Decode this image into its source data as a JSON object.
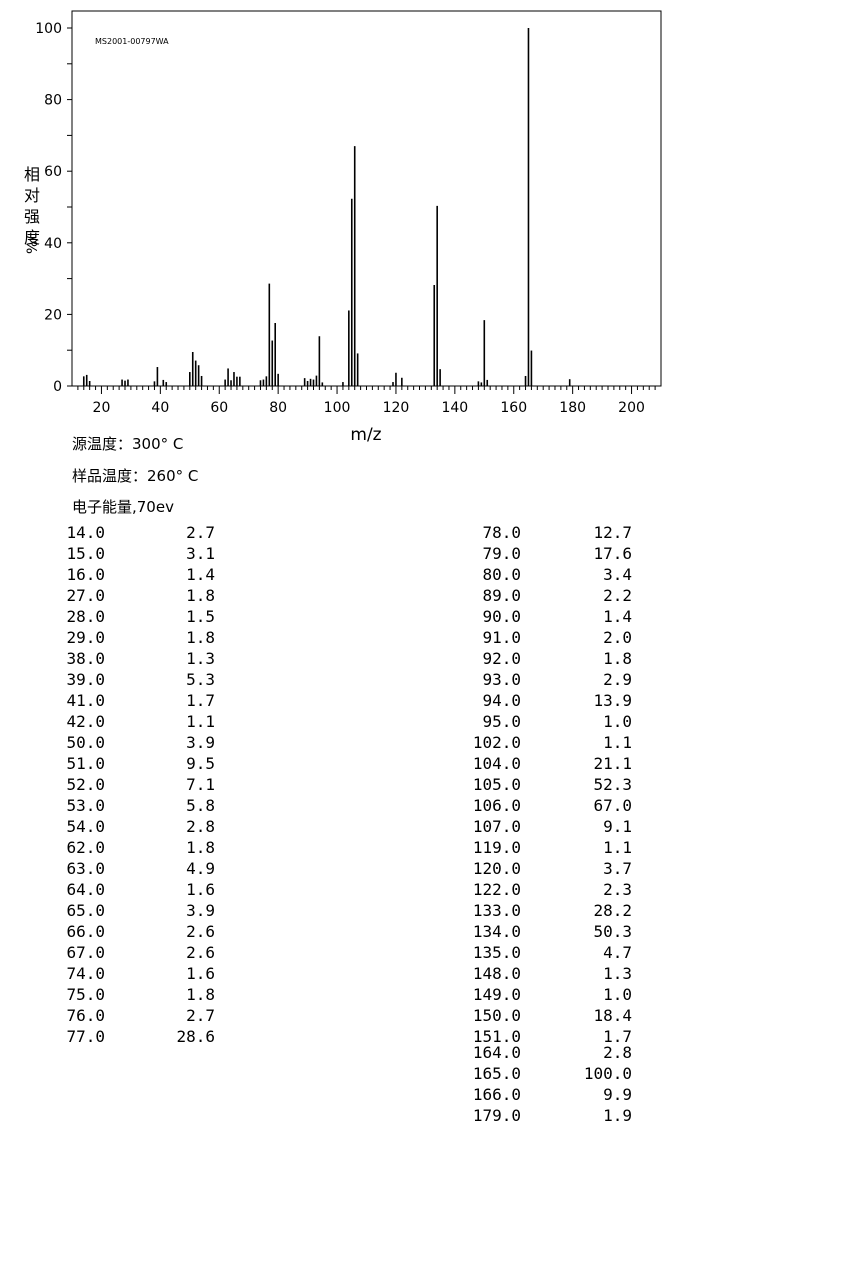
{
  "chart_data": {
    "type": "bar",
    "sample_id": "MS2001-00797WA",
    "xlabel": "m/z",
    "ylabel": "相对强度 %/",
    "xlim": [
      10,
      205
    ],
    "ylim": [
      0,
      105
    ],
    "x_ticks": [
      20,
      40,
      60,
      80,
      100,
      120,
      140,
      160,
      180,
      200
    ],
    "y_ticks": [
      0,
      20,
      40,
      60,
      80,
      100
    ],
    "peaks": [
      [
        14.0,
        2.7
      ],
      [
        15.0,
        3.1
      ],
      [
        16.0,
        1.4
      ],
      [
        27.0,
        1.8
      ],
      [
        28.0,
        1.5
      ],
      [
        29.0,
        1.8
      ],
      [
        38.0,
        1.3
      ],
      [
        39.0,
        5.3
      ],
      [
        41.0,
        1.7
      ],
      [
        42.0,
        1.1
      ],
      [
        50.0,
        3.9
      ],
      [
        51.0,
        9.5
      ],
      [
        52.0,
        7.1
      ],
      [
        53.0,
        5.8
      ],
      [
        54.0,
        2.8
      ],
      [
        62.0,
        1.8
      ],
      [
        63.0,
        4.9
      ],
      [
        64.0,
        1.6
      ],
      [
        65.0,
        3.9
      ],
      [
        66.0,
        2.6
      ],
      [
        67.0,
        2.6
      ],
      [
        74.0,
        1.6
      ],
      [
        75.0,
        1.8
      ],
      [
        76.0,
        2.7
      ],
      [
        77.0,
        28.6
      ],
      [
        78.0,
        12.7
      ],
      [
        79.0,
        17.6
      ],
      [
        80.0,
        3.4
      ],
      [
        89.0,
        2.2
      ],
      [
        90.0,
        1.4
      ],
      [
        91.0,
        2.0
      ],
      [
        92.0,
        1.8
      ],
      [
        93.0,
        2.9
      ],
      [
        94.0,
        13.9
      ],
      [
        95.0,
        1.0
      ],
      [
        102.0,
        1.1
      ],
      [
        104.0,
        21.1
      ],
      [
        105.0,
        52.3
      ],
      [
        106.0,
        67.0
      ],
      [
        107.0,
        9.1
      ],
      [
        119.0,
        1.1
      ],
      [
        120.0,
        3.7
      ],
      [
        122.0,
        2.3
      ],
      [
        133.0,
        28.2
      ],
      [
        134.0,
        50.3
      ],
      [
        135.0,
        4.7
      ],
      [
        148.0,
        1.3
      ],
      [
        149.0,
        1.0
      ],
      [
        150.0,
        18.4
      ],
      [
        151.0,
        1.7
      ],
      [
        164.0,
        2.8
      ],
      [
        165.0,
        100.0
      ],
      [
        166.0,
        9.9
      ],
      [
        179.0,
        1.9
      ]
    ]
  },
  "info": {
    "source_temp": "源温度：300° C",
    "sample_temp": "样品温度：260° C",
    "electron_energy": "电子能量,70ev"
  },
  "table": {
    "left": [
      [
        "14.0",
        "2.7"
      ],
      [
        "15.0",
        "3.1"
      ],
      [
        "16.0",
        "1.4"
      ],
      [
        "27.0",
        "1.8"
      ],
      [
        "28.0",
        "1.5"
      ],
      [
        "29.0",
        "1.8"
      ],
      [
        "38.0",
        "1.3"
      ],
      [
        "39.0",
        "5.3"
      ],
      [
        "41.0",
        "1.7"
      ],
      [
        "42.0",
        "1.1"
      ],
      [
        "50.0",
        "3.9"
      ],
      [
        "51.0",
        "9.5"
      ],
      [
        "52.0",
        "7.1"
      ],
      [
        "53.0",
        "5.8"
      ],
      [
        "54.0",
        "2.8"
      ],
      [
        "62.0",
        "1.8"
      ],
      [
        "63.0",
        "4.9"
      ],
      [
        "64.0",
        "1.6"
      ],
      [
        "65.0",
        "3.9"
      ],
      [
        "66.0",
        "2.6"
      ],
      [
        "67.0",
        "2.6"
      ],
      [
        "74.0",
        "1.6"
      ],
      [
        "75.0",
        "1.8"
      ],
      [
        "76.0",
        "2.7"
      ],
      [
        "77.0",
        "28.6"
      ]
    ],
    "right": [
      [
        "78.0",
        "12.7"
      ],
      [
        "79.0",
        "17.6"
      ],
      [
        "80.0",
        "3.4"
      ],
      [
        "89.0",
        "2.2"
      ],
      [
        "90.0",
        "1.4"
      ],
      [
        "91.0",
        "2.0"
      ],
      [
        "92.0",
        "1.8"
      ],
      [
        "93.0",
        "2.9"
      ],
      [
        "94.0",
        "13.9"
      ],
      [
        "95.0",
        "1.0"
      ],
      [
        "102.0",
        "1.1"
      ],
      [
        "104.0",
        "21.1"
      ],
      [
        "105.0",
        "52.3"
      ],
      [
        "106.0",
        "67.0"
      ],
      [
        "107.0",
        "9.1"
      ],
      [
        "119.0",
        "1.1"
      ],
      [
        "120.0",
        "3.7"
      ],
      [
        "122.0",
        "2.3"
      ],
      [
        "133.0",
        "28.2"
      ],
      [
        "134.0",
        "50.3"
      ],
      [
        "135.0",
        "4.7"
      ],
      [
        "148.0",
        "1.3"
      ],
      [
        "149.0",
        "1.0"
      ],
      [
        "150.0",
        "18.4"
      ],
      [
        "151.0",
        "1.7"
      ],
      [
        "164.0",
        "2.8"
      ],
      [
        "165.0",
        "100.0"
      ],
      [
        "166.0",
        "9.9"
      ],
      [
        "179.0",
        "1.9"
      ]
    ]
  }
}
